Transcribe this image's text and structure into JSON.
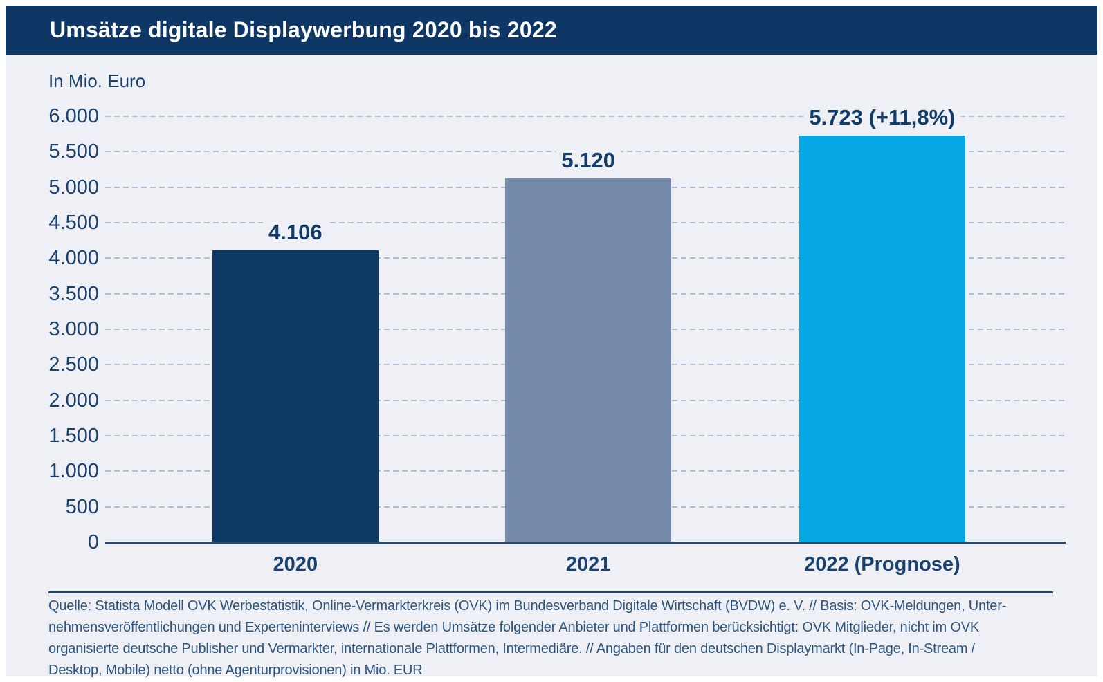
{
  "header": {
    "title": "Umsätze digitale Displaywerbung 2020 bis 2022",
    "background_color": "#0e3766",
    "text_color": "#ffffff"
  },
  "chart_data": {
    "type": "bar",
    "title": "Umsätze digitale Displaywerbung 2020 bis 2022",
    "unit_label": "In Mio. Euro",
    "categories": [
      "2020",
      "2021",
      "2022 (Prognose)"
    ],
    "values": [
      4106,
      5120,
      5723
    ],
    "bar_labels": [
      {
        "value": "4.106",
        "note": ""
      },
      {
        "value": "5.120",
        "note": ""
      },
      {
        "value": "5.723",
        "note": "(+11,8%)"
      }
    ],
    "bar_colors": [
      "#0e3a66",
      "#7589ab",
      "#05a8e2"
    ],
    "ylim": [
      0,
      6000
    ],
    "ytick_step": 500,
    "yticks": [
      {
        "value": 6000,
        "label": "6.000"
      },
      {
        "value": 5500,
        "label": "5.500"
      },
      {
        "value": 5000,
        "label": "5.000"
      },
      {
        "value": 4500,
        "label": "4.500"
      },
      {
        "value": 4000,
        "label": "4.000"
      },
      {
        "value": 3500,
        "label": "3.500"
      },
      {
        "value": 3000,
        "label": "3.000"
      },
      {
        "value": 2500,
        "label": "2.500"
      },
      {
        "value": 2000,
        "label": "2.000"
      },
      {
        "value": 1500,
        "label": "1.500"
      },
      {
        "value": 1000,
        "label": "1.000"
      },
      {
        "value": 500,
        "label": "500"
      },
      {
        "value": 0,
        "label": "0"
      }
    ],
    "grid": {
      "style": "dashed",
      "orientation": "horizontal",
      "color": "#b3bdd5"
    },
    "legend": "none",
    "colors": {
      "axis_line": "#234a73",
      "tick_text": "#1b416f",
      "value_label_text": "#123c6b",
      "background": "#eef0f5"
    }
  },
  "footer": {
    "lines": [
      "Quelle: Statista Modell OVK Werbestatistik, Online-Vermarkterkreis (OVK) im Bundesverband Digitale Wirtschaft (BVDW) e. V. // Basis: OVK-Meldungen, Unter-",
      "nehmensveröffentlichungen und Experteninterviews // Es werden Umsätze folgender Anbieter und Plattformen berücksichtigt: OVK Mitglieder, nicht im OVK",
      "organisierte deutsche Publisher und Vermarkter, internationale Plattformen, Intermediäre. // Angaben für den deutschen Displaymarkt (In-Page, In-Stream /",
      "Desktop, Mobile) netto (ohne Agenturprovisionen) in Mio. EUR"
    ],
    "text_color": "#2c547d",
    "separator_color": "#1f4671"
  }
}
